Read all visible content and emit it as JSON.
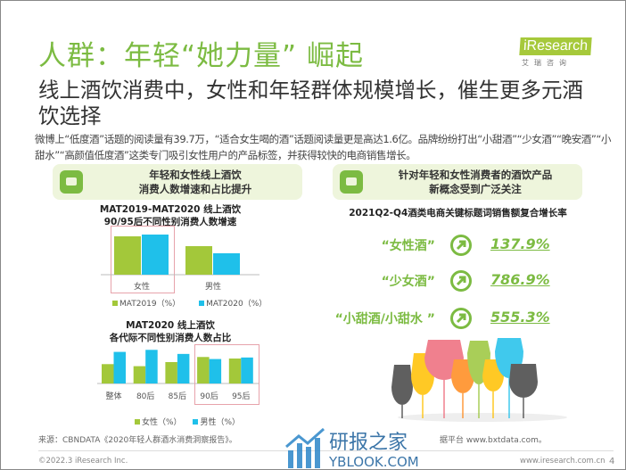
{
  "header": {
    "title": "人群：年轻“她力量” 崛起",
    "logo_text": "iResearch",
    "logo_sub": "艾瑞咨询",
    "subtitle": "线上酒饮消费中，女性和年轻群体规模增长，催生更多元酒饮选择",
    "body": "微博上“低度酒”话题的阅读量有39.7万，“适合女生喝的酒”话题阅读量更是高达1.6亿。品牌纷纷打出“小甜酒”“少女酒”“晚安酒”“小甜水”“高颜值低度酒”这类专门吸引女性用户的产品标签，并获得较快的电商销售增长。"
  },
  "left_banner": {
    "line1": "年轻和女性线上酒饮",
    "line2": "消费人数增速和占比提升"
  },
  "right_banner": {
    "line1": "针对年轻和女性消费者的酒饮产品",
    "line2": "新概念受到广泛关注"
  },
  "colors": {
    "green": "#a3c83a",
    "blue": "#1fc0ea",
    "accent": "#7cbb42"
  },
  "chart_data": [
    {
      "type": "bar",
      "title": "MAT2019-MAT2020 线上酒饮",
      "subtitle": "90/95后不同性别消费人数增速",
      "categories": [
        "女性",
        "男性"
      ],
      "series": [
        {
          "name": "MAT2019（%）",
          "values": [
            43,
            32
          ]
        },
        {
          "name": "MAT2020（%）",
          "values": [
            45,
            24
          ]
        }
      ],
      "ylim": [
        0,
        50
      ],
      "note": "values relative, unlabeled",
      "highlight": "女性"
    },
    {
      "type": "bar",
      "title": "MAT2020 线上酒饮",
      "subtitle": "各代际不同性别消费人数占比",
      "categories": [
        "整体",
        "80后",
        "85后",
        "90后",
        "95后"
      ],
      "series": [
        {
          "name": "女性（%）",
          "values": [
            38,
            34,
            42,
            52,
            49
          ]
        },
        {
          "name": "男性（%）",
          "values": [
            62,
            66,
            58,
            48,
            51
          ]
        }
      ],
      "ylim": [
        0,
        70
      ],
      "highlight": [
        "90后",
        "95后"
      ]
    }
  ],
  "right_chart": {
    "title": "2021Q2-Q4酒类电商关键标题词销售额复合增长率",
    "rows": [
      {
        "label": "“女性酒”",
        "value": "137.9%"
      },
      {
        "label": "“少女酒”",
        "value": "786.9%"
      },
      {
        "label": "“小甜酒/小甜水 ”",
        "value": "555.3%"
      }
    ]
  },
  "footer": {
    "source": "来源：CBNDATA《2020年轻人群酒水消费洞察报告》。",
    "source2": "据平台 www.bxtdata.com。",
    "copyright": "©2022.3 iResearch Inc.",
    "website": "www.iresearch.com.cn",
    "page": "4",
    "watermark": "研报之家 YBLOOK.COM"
  }
}
